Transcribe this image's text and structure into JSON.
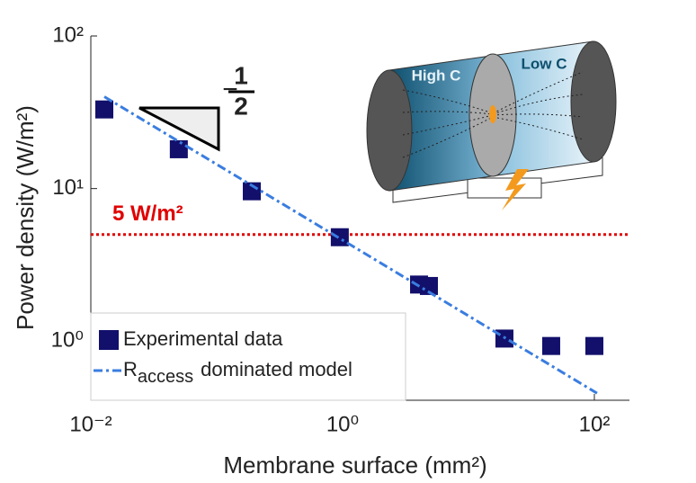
{
  "chart_data": {
    "type": "scatter",
    "xlabel": "Membrane surface (mm²)",
    "ylabel": "Power density (W/m²)",
    "xscale": "log",
    "yscale": "log",
    "xlim": [
      0.01,
      190
    ],
    "ylim": [
      0.41,
      100
    ],
    "xticks": [
      {
        "value": 0.01,
        "label": "10⁻²"
      },
      {
        "value": 1,
        "label": "10⁰"
      },
      {
        "value": 100,
        "label": "10²"
      }
    ],
    "yticks": [
      {
        "value": 1,
        "label": "10⁰"
      },
      {
        "value": 10,
        "label": "10¹"
      },
      {
        "value": 100,
        "label": "10²"
      }
    ],
    "series": [
      {
        "name": "Experimental data",
        "color": "#12106b",
        "marker": "square",
        "x": [
          0.0128,
          0.05,
          0.19,
          0.95,
          4.05,
          4.85,
          19.3,
          45.4,
          100
        ],
        "values": [
          33,
          18.1,
          9.6,
          4.8,
          2.35,
          2.3,
          1.04,
          0.93,
          0.93
        ]
      },
      {
        "name_parts": [
          "R",
          "access",
          "dominated model"
        ],
        "color": "#3a7de0",
        "style": "dashdot",
        "x": [
          0.0128,
          105
        ],
        "values": [
          40,
          0.456
        ]
      }
    ],
    "reference_line": {
      "value": 5,
      "color": "#e00000",
      "label": "5 W/m²"
    },
    "slope_annotation": {
      "sign": "−",
      "numerator": "1",
      "denominator": "2"
    },
    "inset": {
      "left_label": "High C",
      "right_label": "Low C"
    },
    "legend": "lower left"
  }
}
